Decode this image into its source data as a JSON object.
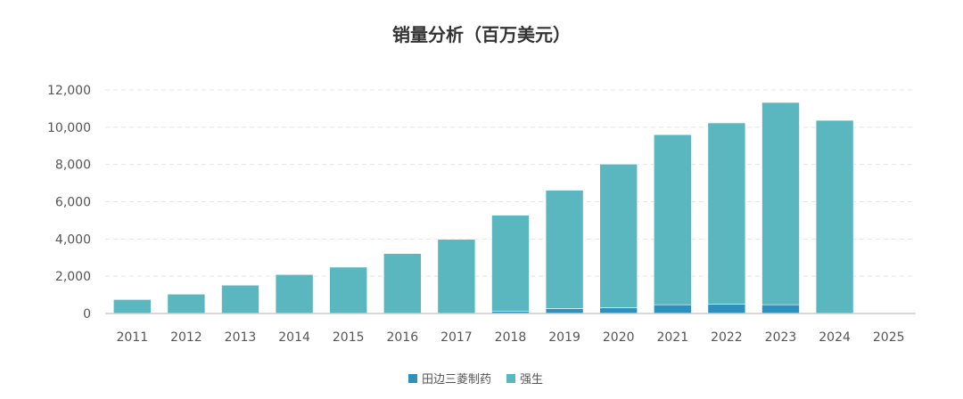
{
  "chart_data": {
    "type": "bar",
    "stacked": true,
    "title": "销量分析（百万美元）",
    "xlabel": "",
    "ylabel": "",
    "categories": [
      "2011",
      "2012",
      "2013",
      "2014",
      "2015",
      "2016",
      "2017",
      "2018",
      "2019",
      "2020",
      "2021",
      "2022",
      "2023",
      "2024",
      "2025"
    ],
    "ylim": [
      0,
      12000
    ],
    "yticks": [
      0,
      2000,
      4000,
      6000,
      8000,
      10000,
      12000
    ],
    "ytick_labels": [
      "0",
      "2,000",
      "4,000",
      "6,000",
      "8,000",
      "10,000",
      "12,000"
    ],
    "grid": true,
    "legend_position": "bottom",
    "series": [
      {
        "name": "田边三菱制药",
        "color": "#2e91bd",
        "values": [
          0,
          0,
          0,
          0,
          0,
          0,
          0,
          130,
          260,
          310,
          470,
          510,
          470,
          0,
          0
        ]
      },
      {
        "name": "强生",
        "color": "#5ab6bf",
        "values": [
          750,
          1040,
          1520,
          2090,
          2490,
          3220,
          3980,
          5150,
          6360,
          7710,
          9130,
          9720,
          10860,
          10370,
          0
        ]
      }
    ]
  }
}
